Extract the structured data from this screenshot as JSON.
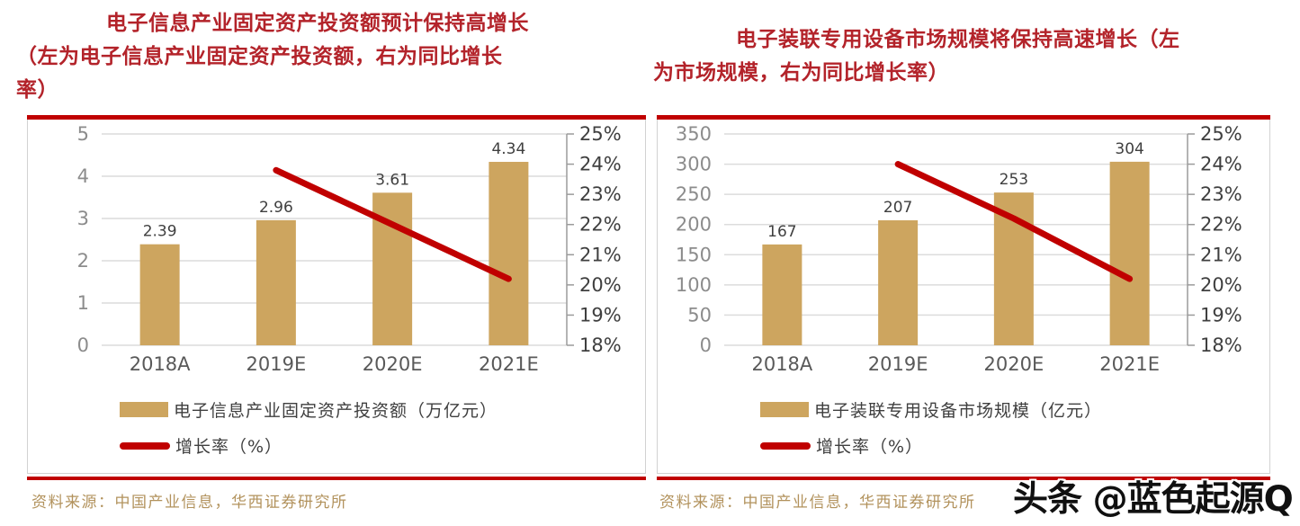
{
  "colors": {
    "bar": "#cda55f",
    "line": "#c00000",
    "separator_red": "#c00000",
    "title_red": "#b3232a",
    "source_gold": "#b2925c",
    "gridline": "#dcdcdc",
    "axis_line": "#9b9b9b",
    "left_tick_label": "#8c8c8c",
    "right_tick_label": "#3f3f3f",
    "x_tick_label": "#595959",
    "bar_value_label": "#3f3f3f"
  },
  "watermark": "头条 @蓝色起源Q",
  "figures": [
    {
      "title_lines": [
        "电子信息产业固定资产投资额预计保持高增长",
        "（左为电子信息产业固定资产投资额，右为同比增长",
        "率）"
      ],
      "legend": {
        "bar_label": "电子信息产业固定资产投资额（万亿元）",
        "line_label": "增长率（%）"
      },
      "source": "资料来源：中国产业信息，华西证券研究所"
    },
    {
      "title_lines": [
        "电子装联专用设备市场规模将保持高速增长（左",
        "为市场规模，右为同比增长率）"
      ],
      "legend": {
        "bar_label": "电子装联专用设备市场规模（亿元）",
        "line_label": "增长率（%）"
      },
      "source": "资料来源：中国产业信息，华西证券研究所"
    }
  ],
  "chart_data": [
    {
      "type": "bar+line",
      "title": "电子信息产业固定资产投资额预计保持高增长（左为电子信息产业固定资产投资额，右为同比增长率）",
      "categories": [
        "2018A",
        "2019E",
        "2020E",
        "2021E"
      ],
      "series": [
        {
          "name": "电子信息产业固定资产投资额（万亿元）",
          "type": "bar",
          "axis": "left",
          "values": [
            2.39,
            2.96,
            3.61,
            4.34
          ]
        },
        {
          "name": "增长率（%）",
          "type": "line",
          "axis": "right",
          "values": [
            null,
            23.8,
            22.0,
            20.2
          ]
        }
      ],
      "left_axis": {
        "min": 0,
        "max": 5,
        "ticks": [
          0,
          1,
          2,
          3,
          4,
          5
        ]
      },
      "right_axis": {
        "min": 18,
        "max": 25,
        "ticks": [
          18,
          19,
          20,
          21,
          22,
          23,
          24,
          25
        ],
        "suffix": "%"
      },
      "grid": true,
      "legend_position": "bottom",
      "source": "资料来源：中国产业信息，华西证券研究所"
    },
    {
      "type": "bar+line",
      "title": "电子装联专用设备市场规模将保持高速增长（左为市场规模，右为同比增长率）",
      "categories": [
        "2018A",
        "2019E",
        "2020E",
        "2021E"
      ],
      "series": [
        {
          "name": "电子装联专用设备市场规模（亿元）",
          "type": "bar",
          "axis": "left",
          "values": [
            167,
            207,
            253,
            304
          ]
        },
        {
          "name": "增长率（%）",
          "type": "line",
          "axis": "right",
          "values": [
            null,
            24.0,
            22.2,
            20.2
          ]
        }
      ],
      "left_axis": {
        "min": 0,
        "max": 350,
        "ticks": [
          0,
          50,
          100,
          150,
          200,
          250,
          300,
          350
        ]
      },
      "right_axis": {
        "min": 18,
        "max": 25,
        "ticks": [
          18,
          19,
          20,
          21,
          22,
          23,
          24,
          25
        ],
        "suffix": "%"
      },
      "grid": true,
      "legend_position": "bottom",
      "source": "资料来源：中国产业信息，华西证券研究所"
    }
  ]
}
